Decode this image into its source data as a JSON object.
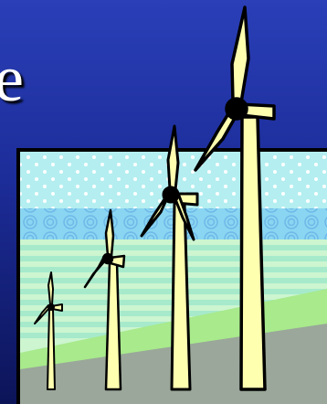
{
  "slide": {
    "title_fragment": "e"
  },
  "clipart": {
    "subject": "wind-turbines",
    "colors": {
      "blade_fill": "#ffffb0",
      "outline": "#000000",
      "sky": "#b4eef0",
      "sea": "#8ad6f2",
      "stripe_light": "#ccf5d0",
      "stripe_dark": "#a6eacb",
      "ground": "#9aa79a",
      "grass": "#a8ea8c",
      "dots": "#ffffff"
    }
  }
}
